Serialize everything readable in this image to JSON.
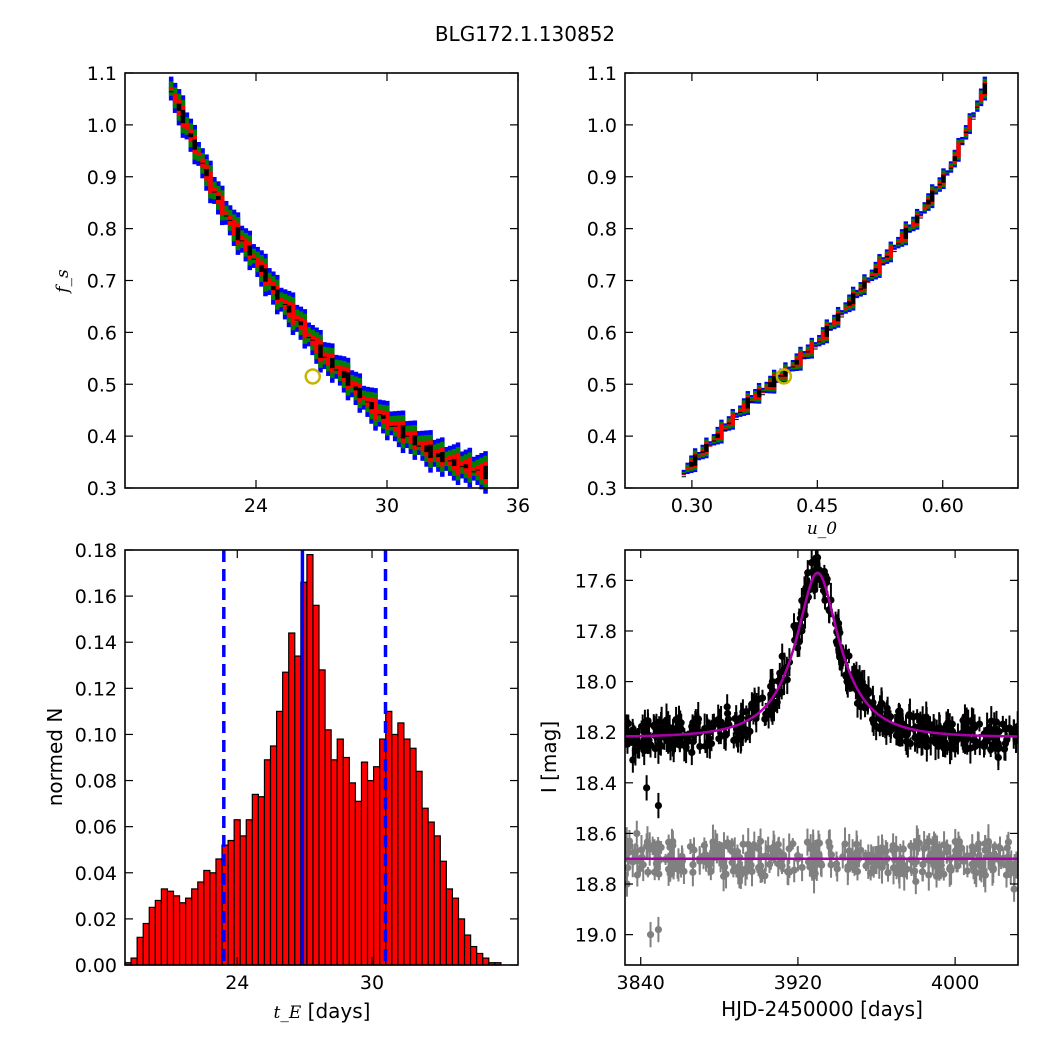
{
  "figure": {
    "title": "BLG172.1.130852"
  },
  "chart_data": [
    {
      "type": "heatmap",
      "panel": "top-left",
      "xlabel": "",
      "ylabel": "f_s",
      "xlim": [
        18,
        36
      ],
      "ylim": [
        0.3,
        1.1
      ],
      "xticks": [
        "24",
        "30",
        "36"
      ],
      "yticks": [
        "0.3",
        "0.4",
        "0.5",
        "0.6",
        "0.7",
        "0.8",
        "0.9",
        "1.0",
        "1.1"
      ],
      "levels": [
        {
          "name": "outer",
          "color": "#0000ff"
        },
        {
          "name": "middle",
          "color": "#007f00"
        },
        {
          "name": "inner",
          "color": "#ff0000"
        },
        {
          "name": "core",
          "color": "#000000"
        }
      ],
      "ridge": [
        [
          20.1,
          1.07
        ],
        [
          21.0,
          0.98
        ],
        [
          22.0,
          0.88
        ],
        [
          23.0,
          0.8
        ],
        [
          24.0,
          0.74
        ],
        [
          25.0,
          0.67
        ],
        [
          26.0,
          0.62
        ],
        [
          27.0,
          0.56
        ],
        [
          28.0,
          0.52
        ],
        [
          29.0,
          0.47
        ],
        [
          30.0,
          0.43
        ],
        [
          31.0,
          0.4
        ],
        [
          32.0,
          0.37
        ],
        [
          33.0,
          0.35
        ],
        [
          34.5,
          0.33
        ]
      ],
      "best_fit": {
        "x": 26.6,
        "y": 0.515
      }
    },
    {
      "type": "heatmap",
      "panel": "top-right",
      "xlabel": "u_0",
      "ylabel": "",
      "xlim": [
        0.22,
        0.69
      ],
      "ylim": [
        0.3,
        1.1
      ],
      "xticks": [
        "0.30",
        "0.45",
        "0.60"
      ],
      "yticks": [
        "0.3",
        "0.4",
        "0.5",
        "0.6",
        "0.7",
        "0.8",
        "0.9",
        "1.0",
        "1.1"
      ],
      "ridge": [
        [
          0.29,
          0.33
        ],
        [
          0.33,
          0.4
        ],
        [
          0.37,
          0.47
        ],
        [
          0.41,
          0.52
        ],
        [
          0.45,
          0.58
        ],
        [
          0.49,
          0.66
        ],
        [
          0.53,
          0.74
        ],
        [
          0.57,
          0.82
        ],
        [
          0.61,
          0.92
        ],
        [
          0.65,
          1.07
        ]
      ],
      "best_fit": {
        "x": 0.41,
        "y": 0.515
      }
    },
    {
      "type": "bar",
      "panel": "bottom-left",
      "xlabel": "t_E",
      "xlabel_suffix": " [days]",
      "ylabel": "normed N",
      "xlim": [
        19,
        36.5
      ],
      "ylim": [
        0,
        0.18
      ],
      "xticks": [
        "24",
        "30"
      ],
      "yticks": [
        "0.00",
        "0.02",
        "0.04",
        "0.06",
        "0.08",
        "0.10",
        "0.12",
        "0.14",
        "0.16",
        "0.18"
      ],
      "bar_color": "#ff0000",
      "bin_start": 19.0,
      "bin_width": 0.27,
      "values": [
        0.001,
        0.003,
        0.012,
        0.018,
        0.025,
        0.028,
        0.033,
        0.032,
        0.03,
        0.027,
        0.029,
        0.033,
        0.036,
        0.041,
        0.04,
        0.046,
        0.052,
        0.054,
        0.063,
        0.056,
        0.063,
        0.074,
        0.073,
        0.089,
        0.095,
        0.11,
        0.127,
        0.144,
        0.134,
        0.166,
        0.178,
        0.156,
        0.128,
        0.102,
        0.089,
        0.098,
        0.09,
        0.079,
        0.071,
        0.088,
        0.08,
        0.086,
        0.098,
        0.11,
        0.1,
        0.105,
        0.098,
        0.094,
        0.084,
        0.068,
        0.062,
        0.056,
        0.045,
        0.033,
        0.029,
        0.02,
        0.013,
        0.008,
        0.005,
        0.003,
        0.001,
        0.001
      ],
      "vlines": [
        {
          "x": 23.4,
          "style": "dashed",
          "color": "#0000ff"
        },
        {
          "x": 26.9,
          "style": "solid",
          "color": "#0000ff"
        },
        {
          "x": 30.6,
          "style": "dashed",
          "color": "#0000ff"
        }
      ]
    },
    {
      "type": "scatter",
      "panel": "bottom-right",
      "xlabel": "HJD-2450000 [days]",
      "ylabel": "I [mag]",
      "xlim": [
        3832,
        4032
      ],
      "ylim": [
        19.12,
        17.48
      ],
      "y_inverted": true,
      "xticks": [
        "3840",
        "3920",
        "4000"
      ],
      "yticks": [
        "17.6",
        "17.8",
        "18.0",
        "18.2",
        "18.4",
        "18.6",
        "18.8",
        "19.0"
      ],
      "model": {
        "color": "#aa00aa",
        "baseline": 18.22,
        "peak_time": 3930,
        "peak_mag": 17.57,
        "t_E": 26.9,
        "u0": 0.41
      },
      "residual_baseline": {
        "y": 18.7,
        "color": "#aa00aa"
      },
      "points_color": "#000000",
      "residual_color": "#808080",
      "series": [
        {
          "name": "data",
          "x": [
            3833,
            3836,
            3841,
            3845,
            3852,
            3858,
            3866,
            3875,
            3884,
            3892,
            3900,
            3907,
            3912,
            3918,
            3922,
            3925,
            3927,
            3929,
            3931,
            3933,
            3936,
            3940,
            3945,
            3952,
            3958,
            3965,
            3975,
            3985,
            3995,
            4005,
            4015,
            4022,
            4030,
            3843,
            3849,
            3930
          ],
          "y": [
            18.2,
            18.31,
            18.18,
            18.25,
            18.22,
            18.15,
            18.28,
            18.2,
            18.1,
            18.12,
            18.07,
            18.0,
            17.9,
            17.78,
            17.68,
            17.57,
            17.53,
            17.56,
            17.58,
            17.64,
            17.72,
            17.85,
            18.0,
            18.1,
            18.15,
            18.2,
            18.18,
            18.22,
            18.25,
            18.14,
            18.24,
            18.3,
            18.2,
            18.42,
            18.49,
            17.51
          ]
        },
        {
          "name": "residuals",
          "x": [
            3833,
            3838,
            3843,
            3848,
            3855,
            3862,
            3870,
            3880,
            3890,
            3900,
            3910,
            3920,
            3930,
            3940,
            3950,
            3960,
            3970,
            3980,
            3990,
            4000,
            4010,
            4020,
            4030,
            3849,
            3845
          ],
          "y": [
            18.8,
            18.6,
            18.65,
            18.72,
            18.69,
            18.75,
            18.7,
            18.68,
            18.73,
            18.66,
            18.72,
            18.7,
            18.68,
            18.74,
            18.71,
            18.7,
            18.66,
            18.79,
            18.72,
            18.69,
            18.75,
            18.7,
            18.82,
            18.98,
            19.0
          ]
        }
      ]
    }
  ]
}
